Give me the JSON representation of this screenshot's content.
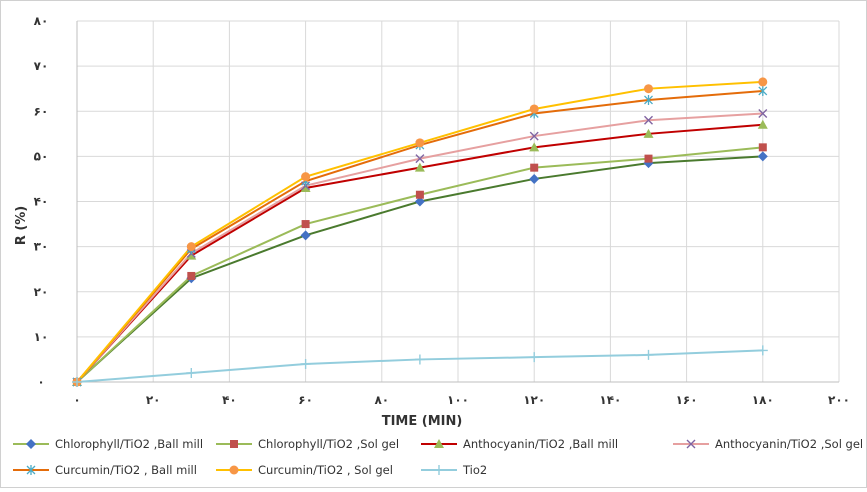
{
  "chart_data": {
    "type": "line",
    "title": "",
    "xlabel": "TIME (MIN)",
    "ylabel": "R (%)",
    "xlim": [
      0,
      200
    ],
    "ylim": [
      0,
      80
    ],
    "x_ticks": [
      0,
      20,
      40,
      60,
      80,
      100,
      120,
      140,
      160,
      180,
      200
    ],
    "x_tick_labels": [
      "٠",
      "٢٠",
      "۴٠",
      "۶٠",
      "٨٠",
      "١٠٠",
      "١٢٠",
      "١۴٠",
      "١۶٠",
      "١٨٠",
      "٢٠٠"
    ],
    "y_ticks": [
      0,
      10,
      20,
      30,
      40,
      50,
      60,
      70,
      80
    ],
    "y_tick_labels": [
      "٠",
      "١٠",
      "٢٠",
      "٣٠",
      "۴٠",
      "۵٠",
      "۶٠",
      "٧٠",
      "٨٠"
    ],
    "grid": true,
    "legend_position": "bottom",
    "x": [
      0,
      30,
      60,
      90,
      120,
      150,
      180
    ],
    "series": [
      {
        "name": "Chlorophyll/TiO2 ,Ball mill",
        "color": "#4472c4",
        "marker": "diamond",
        "values": [
          0,
          23,
          32.5,
          40,
          45,
          48.5,
          50
        ]
      },
      {
        "name": "Chlorophyll/TiO2 ,Sol gel",
        "color": "#c0504d",
        "marker": "square",
        "values": [
          0,
          23.5,
          35,
          41.5,
          47.5,
          49.5,
          52
        ]
      },
      {
        "name": "Anthocyanin/TiO2 ,Ball mill",
        "color": "#9bbb59",
        "marker": "triangle",
        "values": [
          0,
          28,
          43,
          47.5,
          52,
          55,
          57
        ]
      },
      {
        "name": "Anthocyanin/TiO2 ,Sol gel",
        "color": "#8064a2",
        "marker": "x",
        "values": [
          0,
          28.5,
          43.5,
          49.5,
          54.5,
          58,
          59.5
        ]
      },
      {
        "name": "Curcumin/TiO2 , Ball mill",
        "color": "#4bacc6",
        "marker": "asterisk",
        "values": [
          0,
          29.5,
          44.5,
          52.5,
          59.5,
          62.5,
          64.5
        ]
      },
      {
        "name": "Curcumin/TiO2 , Sol gel",
        "color": "#f79646",
        "marker": "circle",
        "values": [
          0,
          30,
          45.5,
          53,
          60.5,
          65,
          66.5
        ]
      },
      {
        "name": "Tio2",
        "color": "#93cddd",
        "marker": "plus",
        "values": [
          0,
          2,
          4,
          5,
          5.5,
          6,
          7
        ]
      }
    ],
    "lines": [
      {
        "color": "#4a7a2e",
        "values": [
          0,
          23,
          32.5,
          40,
          45,
          48.5,
          50
        ]
      },
      {
        "color": "#9bbb59",
        "values": [
          0,
          23.5,
          35,
          41.5,
          47.5,
          49.5,
          52
        ]
      },
      {
        "color": "#c00000",
        "values": [
          0,
          28,
          43,
          47.5,
          52,
          55,
          57
        ]
      },
      {
        "color": "#e6a0a0",
        "values": [
          0,
          28.5,
          43.5,
          49.5,
          54.5,
          58,
          59.5
        ]
      },
      {
        "color": "#e46c0a",
        "values": [
          0,
          29.5,
          44.5,
          52.5,
          59.5,
          62.5,
          64.5
        ]
      },
      {
        "color": "#ffc000",
        "values": [
          0,
          30,
          45.5,
          53,
          60.5,
          65,
          66.5
        ]
      },
      {
        "color": "#93cddd",
        "values": [
          0,
          2,
          4,
          5,
          5.5,
          6,
          7
        ]
      }
    ],
    "legend_swatch_colors": [
      "#9bbb59",
      "#9bbb59",
      "#c00000",
      "#e6a0a0",
      "#e46c0a",
      "#ffc000",
      "#93cddd"
    ]
  }
}
